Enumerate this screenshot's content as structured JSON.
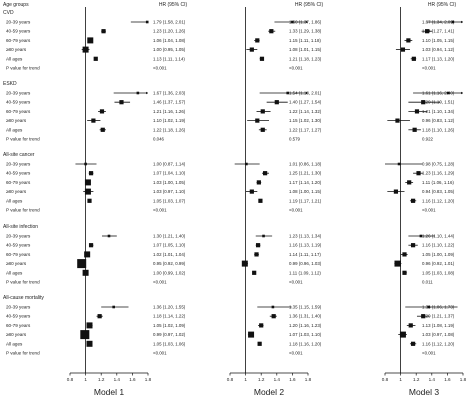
{
  "chart_data": {
    "type": "forest",
    "header": {
      "label_column": "Age groups",
      "hr_column": "HR (95% CI)"
    },
    "axis": {
      "ticks": [
        "0.8",
        "1",
        "1.2",
        "1.4",
        "1.6",
        "1.8"
      ],
      "tick_values": [
        0.8,
        1.0,
        1.2,
        1.4,
        1.6,
        1.8
      ],
      "range": [
        0.8,
        1.8
      ],
      "reference_line": 1.0
    },
    "models": [
      {
        "name": "Model 1",
        "sections": [
          {
            "title": "CVD",
            "rows": [
              {
                "label": "20-39 years",
                "hr": 1.79,
                "lo": 1.58,
                "hi": 2.01,
                "text": "1.79 (1.58, 2.01)",
                "size": 1
              },
              {
                "label": "40-59 years",
                "hr": 1.23,
                "lo": 1.2,
                "hi": 1.26,
                "text": "1.23 (1.20, 1.26)",
                "size": 2
              },
              {
                "label": "60-79 years",
                "hr": 1.06,
                "lo": 1.04,
                "hi": 1.08,
                "text": "1.06 (1.04, 1.08)",
                "size": 3
              },
              {
                "label": "≥80 years",
                "hr": 1.0,
                "lo": 0.95,
                "hi": 1.05,
                "text": "1.00 (0.95, 1.05)",
                "size": 3
              },
              {
                "label": "All ages",
                "hr": 1.13,
                "lo": 1.11,
                "hi": 1.14,
                "text": "1.13 (1.11, 1.14)",
                "size": 2
              },
              {
                "label": "P value for trend",
                "text": "<0.001"
              }
            ]
          },
          {
            "title": "ESKD",
            "rows": [
              {
                "label": "20-39 years",
                "hr": 1.67,
                "lo": 1.36,
                "hi": 2.03,
                "text": "1.67 (1.36, 2.03)",
                "size": 1
              },
              {
                "label": "40-59 years",
                "hr": 1.46,
                "lo": 1.37,
                "hi": 1.57,
                "text": "1.46 (1.37, 1.57)",
                "size": 2
              },
              {
                "label": "60-79 years",
                "hr": 1.21,
                "hi": 1.26,
                "lo": 1.16,
                "text": "1.21 (1.16, 1.26)",
                "size": 2
              },
              {
                "label": "≥80 years",
                "hr": 1.1,
                "lo": 1.02,
                "hi": 1.19,
                "text": "1.10 (1.02, 1.19)",
                "size": 2
              },
              {
                "label": "All ages",
                "hr": 1.22,
                "lo": 1.18,
                "hi": 1.26,
                "text": "1.22 (1.18, 1.26)",
                "size": 2
              },
              {
                "label": "P value for trend",
                "text": "0.046"
              }
            ]
          },
          {
            "title": "All-site cancer",
            "rows": [
              {
                "label": "20-39 years",
                "hr": 1.0,
                "lo": 0.87,
                "hi": 1.14,
                "text": "1.00 (0.87, 1.14)",
                "size": 1
              },
              {
                "label": "40-59 years",
                "hr": 1.07,
                "lo": 1.04,
                "hi": 1.1,
                "text": "1.07 (1.04, 1.10)",
                "size": 2
              },
              {
                "label": "60-79 years",
                "hr": 1.03,
                "lo": 1.0,
                "hi": 1.05,
                "text": "1.03 (1.00, 1.05)",
                "size": 3
              },
              {
                "label": "≥80 years",
                "hr": 1.03,
                "lo": 0.97,
                "hi": 1.1,
                "text": "1.03 (0.97, 1.10)",
                "size": 3
              },
              {
                "label": "All ages",
                "hr": 1.05,
                "lo": 1.03,
                "hi": 1.07,
                "text": "1.05 (1.03, 1.07)",
                "size": 2
              },
              {
                "label": "P value for trend",
                "text": "<0.001"
              }
            ]
          },
          {
            "title": "All-site infection",
            "rows": [
              {
                "label": "20-39 years",
                "hr": 1.3,
                "lo": 1.21,
                "hi": 1.4,
                "text": "1.30 (1.21, 1.40)",
                "size": 1
              },
              {
                "label": "40-59 years",
                "hr": 1.07,
                "lo": 1.05,
                "hi": 1.1,
                "text": "1.07 (1.05, 1.10)",
                "size": 2
              },
              {
                "label": "60-79 years",
                "hr": 1.02,
                "lo": 1.01,
                "hi": 1.04,
                "text": "1.02 (1.01, 1.04)",
                "size": 3
              },
              {
                "label": "≥80 years",
                "hr": 0.95,
                "lo": 0.92,
                "hi": 0.99,
                "text": "0.95 (0.92, 0.99)",
                "size": 4
              },
              {
                "label": "All ages",
                "hr": 1.0,
                "lo": 0.99,
                "hi": 1.02,
                "text": "1.00 (0.99, 1.02)",
                "size": 3
              },
              {
                "label": "P value for trend",
                "text": "<0.001"
              }
            ]
          },
          {
            "title": "All-cause mortality",
            "rows": [
              {
                "label": "20-39 years",
                "hr": 1.36,
                "lo": 1.2,
                "hi": 1.55,
                "text": "1.36 (1.20, 1.55)",
                "size": 1
              },
              {
                "label": "40-59 years",
                "hr": 1.18,
                "lo": 1.14,
                "hi": 1.22,
                "text": "1.18 (1.14, 1.22)",
                "size": 2
              },
              {
                "label": "60-79 years",
                "hr": 1.05,
                "lo": 1.02,
                "hi": 1.09,
                "text": "1.05 (1.02, 1.09)",
                "size": 3
              },
              {
                "label": "≥80 years",
                "hr": 0.99,
                "lo": 0.97,
                "hi": 1.02,
                "text": "0.99 (0.97, 1.02)",
                "size": 4
              },
              {
                "label": "All ages",
                "hr": 1.05,
                "lo": 1.03,
                "hi": 1.06,
                "text": "1.05 (1.03, 1.06)",
                "size": 3
              },
              {
                "label": "P value for trend",
                "text": "<0.001"
              }
            ]
          }
        ]
      },
      {
        "name": "Model 2",
        "sections": [
          {
            "title": "CVD",
            "rows": [
              {
                "hr": 1.6,
                "lo": 1.37,
                "hi": 1.86,
                "text": "1.60 (1.37, 1.86)",
                "size": 1
              },
              {
                "hr": 1.33,
                "lo": 1.29,
                "hi": 1.38,
                "text": "1.33 (1.29, 1.38)",
                "size": 2
              },
              {
                "hr": 1.15,
                "lo": 1.11,
                "hi": 1.18,
                "text": "1.15 (1.11, 1.18)",
                "size": 2
              },
              {
                "hr": 1.08,
                "lo": 1.01,
                "hi": 1.15,
                "text": "1.08 (1.01, 1.15)",
                "size": 2
              },
              {
                "hr": 1.21,
                "lo": 1.18,
                "hi": 1.23,
                "text": "1.21 (1.18, 1.23)",
                "size": 2
              },
              {
                "text": "<0.001"
              }
            ]
          },
          {
            "title": "ESKD",
            "rows": [
              {
                "hr": 1.54,
                "lo": 1.18,
                "hi": 2.01,
                "text": "1.54 (1.18, 2.01)",
                "size": 1
              },
              {
                "hr": 1.4,
                "lo": 1.27,
                "hi": 1.54,
                "text": "1.40 (1.27, 1.54)",
                "size": 2
              },
              {
                "hr": 1.22,
                "lo": 1.14,
                "hi": 1.32,
                "text": "1.22 (1.14, 1.32)",
                "size": 2
              },
              {
                "hr": 1.15,
                "lo": 1.02,
                "hi": 1.3,
                "text": "1.15 (1.02, 1.30)",
                "size": 2
              },
              {
                "hr": 1.22,
                "lo": 1.17,
                "hi": 1.27,
                "text": "1.22 (1.17, 1.27)",
                "size": 2
              },
              {
                "text": "0.579"
              }
            ]
          },
          {
            "title": "All-site cancer",
            "rows": [
              {
                "hr": 1.01,
                "lo": 0.86,
                "hi": 1.18,
                "text": "1.01 (0.86, 1.18)",
                "size": 1
              },
              {
                "hr": 1.25,
                "lo": 1.21,
                "hi": 1.3,
                "text": "1.25 (1.21, 1.30)",
                "size": 2
              },
              {
                "hr": 1.17,
                "lo": 1.14,
                "hi": 1.2,
                "text": "1.17 (1.14, 1.20)",
                "size": 2
              },
              {
                "hr": 1.08,
                "lo": 1.0,
                "hi": 1.15,
                "text": "1.08 (1.00, 1.15)",
                "size": 2
              },
              {
                "hr": 1.19,
                "lo": 1.17,
                "hi": 1.21,
                "text": "1.19 (1.17, 1.21)",
                "size": 2
              },
              {
                "text": "<0.001"
              }
            ]
          },
          {
            "title": "All-site infection",
            "rows": [
              {
                "hr": 1.23,
                "lo": 1.13,
                "hi": 1.34,
                "text": "1.23 (1.13, 1.34)",
                "size": 1
              },
              {
                "hr": 1.16,
                "lo": 1.13,
                "hi": 1.19,
                "text": "1.16 (1.13, 1.19)",
                "size": 2
              },
              {
                "hr": 1.14,
                "lo": 1.11,
                "hi": 1.17,
                "text": "1.14 (1.11, 1.17)",
                "size": 2
              },
              {
                "hr": 0.99,
                "lo": 0.96,
                "hi": 1.03,
                "text": "0.99 (0.96, 1.03)",
                "size": 3
              },
              {
                "hr": 1.11,
                "lo": 1.09,
                "hi": 1.12,
                "text": "1.11 (1.09, 1.12)",
                "size": 2
              },
              {
                "text": "<0.001"
              }
            ]
          },
          {
            "title": "All-cause mortality",
            "rows": [
              {
                "hr": 1.35,
                "lo": 1.15,
                "hi": 1.59,
                "text": "1.35 (1.15, 1.59)",
                "size": 1
              },
              {
                "hr": 1.36,
                "lo": 1.31,
                "hi": 1.4,
                "text": "1.36 (1.31, 1.40)",
                "size": 2
              },
              {
                "hr": 1.2,
                "lo": 1.16,
                "hi": 1.23,
                "text": "1.20 (1.16, 1.23)",
                "size": 2
              },
              {
                "hr": 1.07,
                "lo": 1.03,
                "hi": 1.1,
                "text": "1.07 (1.03, 1.10)",
                "size": 3
              },
              {
                "hr": 1.18,
                "lo": 1.16,
                "hi": 1.2,
                "text": "1.18 (1.16, 1.20)",
                "size": 2
              },
              {
                "text": "<0.001"
              }
            ]
          }
        ]
      },
      {
        "name": "Model 3",
        "sections": [
          {
            "title": "CVD",
            "rows": [
              {
                "hr": 1.67,
                "lo": 1.34,
                "hi": 2.09,
                "text": "1.67 (1.34, 2.09)",
                "size": 1
              },
              {
                "hr": 1.34,
                "lo": 1.27,
                "hi": 1.41,
                "text": "1.34 (1.27, 1.41)",
                "size": 2
              },
              {
                "hr": 1.1,
                "lo": 1.05,
                "hi": 1.15,
                "text": "1.10 (1.05, 1.15)",
                "size": 2
              },
              {
                "hr": 1.03,
                "lo": 0.94,
                "hi": 1.12,
                "text": "1.03 (0.94, 1.12)",
                "size": 2
              },
              {
                "hr": 1.17,
                "lo": 1.13,
                "hi": 1.2,
                "text": "1.17 (1.13, 1.20)",
                "size": 2
              },
              {
                "text": "<0.001"
              }
            ]
          },
          {
            "title": "ESKD",
            "rows": [
              {
                "hr": 1.61,
                "lo": 1.16,
                "hi": 2.4,
                "text": "1.61 (1.16, 2.40)",
                "size": 1
              },
              {
                "hr": 1.29,
                "lo": 1.1,
                "hi": 1.51,
                "text": "1.29 (1.10, 1.51)",
                "size": 2
              },
              {
                "hr": 1.21,
                "lo": 1.1,
                "hi": 1.34,
                "text": "1.21 (1.10, 1.34)",
                "size": 2
              },
              {
                "hr": 0.96,
                "lo": 0.83,
                "hi": 1.12,
                "text": "0.96 (0.83, 1.12)",
                "size": 2
              },
              {
                "hr": 1.18,
                "lo": 1.1,
                "hi": 1.26,
                "text": "1.18 (1.10, 1.26)",
                "size": 2
              },
              {
                "text": "0.922"
              }
            ]
          },
          {
            "title": "All-site cancer",
            "rows": [
              {
                "hr": 0.98,
                "lo": 0.75,
                "hi": 1.28,
                "text": "0.98 (0.75, 1.28)",
                "size": 1
              },
              {
                "hr": 1.23,
                "lo": 1.16,
                "hi": 1.29,
                "text": "1.23 (1.16, 1.29)",
                "size": 2
              },
              {
                "hr": 1.11,
                "lo": 1.06,
                "hi": 1.16,
                "text": "1.11 (1.06, 1.16)",
                "size": 2
              },
              {
                "hr": 0.94,
                "lo": 0.83,
                "hi": 1.05,
                "text": "0.94 (0.83, 1.05)",
                "size": 2
              },
              {
                "hr": 1.16,
                "lo": 1.12,
                "hi": 1.2,
                "text": "1.16 (1.12, 1.20)",
                "size": 2
              },
              {
                "text": "<0.001"
              }
            ]
          },
          {
            "title": "All-site infection",
            "rows": [
              {
                "hr": 1.26,
                "lo": 1.1,
                "hi": 1.44,
                "text": "1.26 (1.10, 1.44)",
                "size": 1
              },
              {
                "hr": 1.16,
                "lo": 1.1,
                "hi": 1.22,
                "text": "1.16 (1.10, 1.22)",
                "size": 2
              },
              {
                "hr": 1.05,
                "lo": 1.0,
                "hi": 1.09,
                "text": "1.05 (1.00, 1.09)",
                "size": 2
              },
              {
                "hr": 0.96,
                "lo": 0.92,
                "hi": 1.01,
                "text": "0.96 (0.92, 1.01)",
                "size": 3
              },
              {
                "hr": 1.05,
                "lo": 1.03,
                "hi": 1.08,
                "text": "1.05 (1.03, 1.08)",
                "size": 2
              },
              {
                "text": "0.011"
              }
            ]
          },
          {
            "title": "All-cause mortality",
            "rows": [
              {
                "hr": 1.36,
                "lo": 1.06,
                "hi": 1.73,
                "text": "1.36 (1.06, 1.73)",
                "size": 1
              },
              {
                "hr": 1.29,
                "lo": 1.21,
                "hi": 1.37,
                "text": "1.29 (1.21, 1.37)",
                "size": 2
              },
              {
                "hr": 1.13,
                "lo": 1.08,
                "hi": 1.19,
                "text": "1.13 (1.08, 1.19)",
                "size": 2
              },
              {
                "hr": 1.03,
                "lo": 0.97,
                "hi": 1.08,
                "text": "1.03 (0.97, 1.08)",
                "size": 3
              },
              {
                "hr": 1.16,
                "lo": 1.12,
                "hi": 1.2,
                "text": "1.16 (1.12, 1.20)",
                "size": 2
              },
              {
                "text": "<0.001"
              }
            ]
          }
        ]
      }
    ]
  }
}
